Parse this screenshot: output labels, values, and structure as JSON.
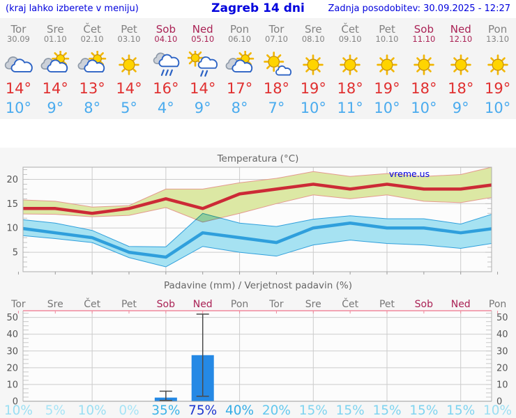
{
  "header": {
    "menu_note": "(kraj lahko izberete v meniju)",
    "title": "Zagreb 14 dni",
    "updated": "Zadnja posodobitev: 30.09.2025 - 12:27"
  },
  "colors": {
    "link_blue": "#0000dd",
    "weekday_gray": "#828282",
    "weekend_red": "#aa2255",
    "tmax_red": "#e03030",
    "tmin_blue": "#4aabee",
    "temp_line_max": "#cc2a36",
    "temp_band_max": "#dce8a4",
    "temp_band_max_edge": "#e49a8e",
    "temp_line_min": "#2f9fdc",
    "temp_band_min": "#a6e2f2",
    "bar_blue": "#2589e5",
    "whisker": "#4a4a4a",
    "grid": "#cccccc",
    "axis": "#999999",
    "axis_text": "#555555",
    "title_text": "#666666",
    "pink_axis": "#f0889c",
    "icon_sun": "#ffd400",
    "icon_sun_stroke": "#c8920a",
    "icon_ray": "#f2b600",
    "icon_cloud_gray": "#ccd1d9",
    "icon_cloud_gray_stroke": "#8f9aa8",
    "icon_cloud_stroke": "#2b62c4"
  },
  "days": [
    {
      "name": "Tor",
      "date": "30.09",
      "weekend": false,
      "icon": "cloudy",
      "tmax": "14°",
      "tmin": "10°",
      "prob": "10%",
      "prob_color": "#9bdff3"
    },
    {
      "name": "Sre",
      "date": "01.10",
      "weekend": false,
      "icon": "partly-cloudy",
      "tmax": "14°",
      "tmin": "9°",
      "prob": "5%",
      "prob_color": "#a7e4f6"
    },
    {
      "name": "Čet",
      "date": "02.10",
      "weekend": false,
      "icon": "partly-cloudy",
      "tmax": "13°",
      "tmin": "8°",
      "prob": "10%",
      "prob_color": "#9bdff3"
    },
    {
      "name": "Pet",
      "date": "03.10",
      "weekend": false,
      "icon": "sunny",
      "tmax": "14°",
      "tmin": "5°",
      "prob": "0%",
      "prob_color": "#a7e4f6"
    },
    {
      "name": "Sob",
      "date": "04.10",
      "weekend": true,
      "icon": "rain",
      "tmax": "16°",
      "tmin": "4°",
      "prob": "35%",
      "prob_color": "#3cb3e8"
    },
    {
      "name": "Ned",
      "date": "05.10",
      "weekend": true,
      "icon": "sun-shower",
      "tmax": "14°",
      "tmin": "9°",
      "prob": "75%",
      "prob_color": "#1b36cf"
    },
    {
      "name": "Pon",
      "date": "06.10",
      "weekend": false,
      "icon": "partly-cloudy",
      "tmax": "17°",
      "tmin": "8°",
      "prob": "40%",
      "prob_color": "#35ade6"
    },
    {
      "name": "Tor",
      "date": "07.10",
      "weekend": false,
      "icon": "mostly-sunny",
      "tmax": "18°",
      "tmin": "7°",
      "prob": "20%",
      "prob_color": "#63c8ee"
    },
    {
      "name": "Sre",
      "date": "08.10",
      "weekend": false,
      "icon": "sunny",
      "tmax": "19°",
      "tmin": "10°",
      "prob": "15%",
      "prob_color": "#7fd4f0"
    },
    {
      "name": "Čet",
      "date": "09.10",
      "weekend": false,
      "icon": "sunny",
      "tmax": "18°",
      "tmin": "11°",
      "prob": "15%",
      "prob_color": "#7fd4f0"
    },
    {
      "name": "Pet",
      "date": "10.10",
      "weekend": false,
      "icon": "sunny",
      "tmax": "19°",
      "tmin": "10°",
      "prob": "15%",
      "prob_color": "#7fd4f0"
    },
    {
      "name": "Sob",
      "date": "11.10",
      "weekend": true,
      "icon": "sunny",
      "tmax": "18°",
      "tmin": "10°",
      "prob": "15%",
      "prob_color": "#7fd4f0"
    },
    {
      "name": "Ned",
      "date": "12.10",
      "weekend": true,
      "icon": "sunny",
      "tmax": "18°",
      "tmin": "9°",
      "prob": "15%",
      "prob_color": "#7fd4f0"
    },
    {
      "name": "Pon",
      "date": "13.10",
      "weekend": false,
      "icon": "sunny",
      "tmax": "19°",
      "tmin": "10°",
      "prob": "10%",
      "prob_color": "#9bdff3"
    }
  ],
  "chart_data": [
    {
      "type": "line",
      "title": "Temperatura (°C)",
      "watermark": "vreme.us",
      "x_labels": [
        "Tor",
        "Sre",
        "Čet",
        "Pet",
        "Sob",
        "Ned",
        "Pon",
        "Tor",
        "Sre",
        "Čet",
        "Pet",
        "Sob",
        "Ned",
        "Pon"
      ],
      "ylim": [
        1,
        22.5
      ],
      "yticks": [
        5,
        10,
        15,
        20
      ],
      "grid_days": [
        3,
        5,
        7,
        9,
        11,
        13
      ],
      "legend_position": "none",
      "series": [
        {
          "name": "temp-max",
          "values": [
            14,
            14,
            13,
            14,
            16,
            14,
            17,
            18,
            19,
            18,
            19,
            18,
            18,
            19
          ]
        },
        {
          "name": "temp-max-upper",
          "values": [
            15.8,
            15.5,
            14.3,
            14.6,
            18,
            18,
            19.3,
            20.2,
            21.6,
            20.6,
            21.2,
            20.6,
            21,
            22.8
          ]
        },
        {
          "name": "temp-max-lower",
          "values": [
            12.9,
            12.8,
            12.3,
            12.6,
            14.2,
            11.2,
            13,
            15,
            16.8,
            16,
            16.8,
            15.5,
            15.2,
            16.5
          ]
        },
        {
          "name": "temp-min",
          "values": [
            10,
            9,
            8,
            5,
            4,
            9,
            8,
            7,
            10,
            11,
            10,
            10,
            9,
            10
          ]
        },
        {
          "name": "temp-min-upper",
          "values": [
            11.8,
            11,
            9.5,
            6.2,
            6.1,
            13,
            11,
            10.3,
            11.8,
            12.5,
            11.9,
            11.9,
            10.8,
            13.2
          ]
        },
        {
          "name": "temp-min-lower",
          "values": [
            8.5,
            7.8,
            7,
            3.9,
            2,
            6.2,
            5,
            4.2,
            6.5,
            7.5,
            6.8,
            6.5,
            5.8,
            7
          ]
        }
      ]
    },
    {
      "type": "bar",
      "title": "Padavine (mm) / Verjetnost padavin (%)",
      "x_labels": [
        "Tor",
        "Sre",
        "Čet",
        "Pet",
        "Sob",
        "Ned",
        "Pon",
        "Tor",
        "Sre",
        "Čet",
        "Pet",
        "Sob",
        "Ned",
        "Pon"
      ],
      "ylim": [
        0,
        54
      ],
      "yticks": [
        0,
        10,
        20,
        30,
        40,
        50
      ],
      "grid_days": [
        3,
        5,
        7,
        9,
        11,
        13
      ],
      "bars": [
        {
          "day_index": 4,
          "label": "Sob",
          "value": 2.2,
          "range_low": 0.5,
          "range_high": 6
        },
        {
          "day_index": 5,
          "label": "Ned",
          "value": 27.5,
          "range_low": 3,
          "range_high": 52
        }
      ],
      "probabilities": [
        "10%",
        "5%",
        "10%",
        "0%",
        "35%",
        "75%",
        "40%",
        "20%",
        "15%",
        "15%",
        "15%",
        "15%",
        "15%",
        "10%"
      ]
    }
  ]
}
